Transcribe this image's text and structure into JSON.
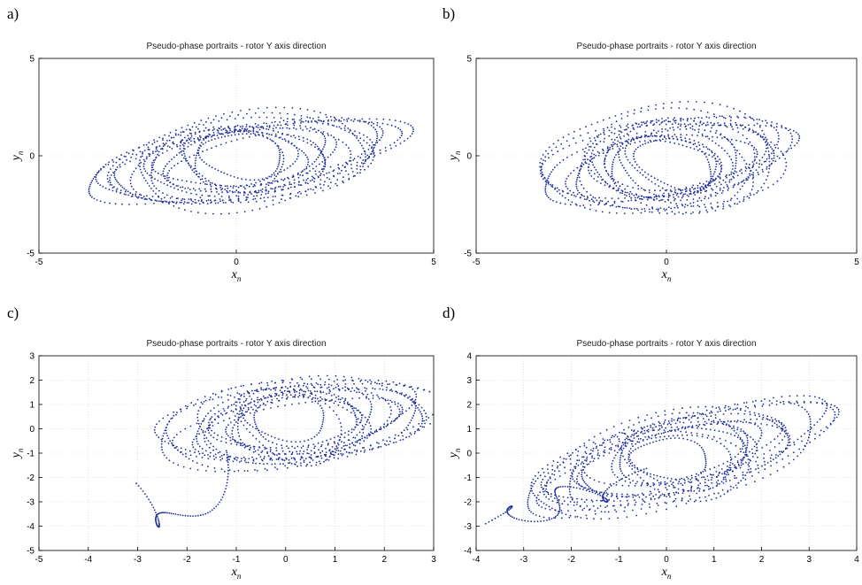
{
  "figure": {
    "panels": [
      {
        "label": "a)",
        "chart_data": {
          "type": "scatter",
          "title": "Pseudo-phase portraits - rotor Y axis direction",
          "xlabel": "x",
          "xlabel_sub": "n",
          "ylabel": "y",
          "ylabel_sub": "n",
          "xlim": [
            -5,
            5
          ],
          "ylim": [
            -5,
            5
          ],
          "xticks": [
            "-5",
            "0",
            "5"
          ],
          "yticks": [
            "-5",
            "0",
            "5"
          ],
          "grid": true,
          "series": [
            {
              "color": "#1f2f9a",
              "shape": "tilted elliptical orbits, semi-major ~3.2-4.2",
              "a_range": [
                1.0,
                4.2
              ],
              "b_range": [
                0.7,
                2.3
              ],
              "tilt_deg": 22,
              "cx": 0.2,
              "cy": -0.3
            }
          ]
        }
      },
      {
        "label": "b)",
        "chart_data": {
          "type": "scatter",
          "title": "Pseudo-phase portraits - rotor Y axis direction",
          "xlabel": "x",
          "xlabel_sub": "n",
          "ylabel": "y",
          "ylabel_sub": "n",
          "xlim": [
            -5,
            5
          ],
          "ylim": [
            -5,
            5
          ],
          "xticks": [
            "-5",
            "0",
            "5"
          ],
          "yticks": [
            "-5",
            "0",
            "5"
          ],
          "grid": true,
          "series": [
            {
              "color": "#1f2f9a",
              "shape": "tilted elliptical orbits",
              "a_range": [
                0.9,
                3.6
              ],
              "b_range": [
                0.8,
                2.8
              ],
              "tilt_deg": 25,
              "cx": 0.1,
              "cy": -0.4
            }
          ]
        }
      },
      {
        "label": "c)",
        "chart_data": {
          "type": "scatter",
          "title": "Pseudo-phase portraits - rotor Y axis direction",
          "xlabel": "x",
          "xlabel_sub": "n",
          "ylabel": "y",
          "ylabel_sub": "n",
          "xlim": [
            -5,
            3
          ],
          "ylim": [
            -5,
            3
          ],
          "xticks": [
            "-5",
            "-4",
            "-3",
            "-2",
            "-1",
            "0",
            "1",
            "2",
            "3"
          ],
          "yticks": [
            "-5",
            "-4",
            "-3",
            "-2",
            "-1",
            "0",
            "1",
            "2",
            "3"
          ],
          "grid": true,
          "series": [
            {
              "color": "#1f2f9a",
              "shape": "tilted elliptical orbits with tail to lower-left",
              "a_range": [
                0.8,
                3.0
              ],
              "b_range": [
                0.6,
                1.8
              ],
              "tilt_deg": 20,
              "cx": 0.3,
              "cy": 0.2
            }
          ]
        }
      },
      {
        "label": "d)",
        "chart_data": {
          "type": "scatter",
          "title": "Pseudo-phase portraits - rotor Y axis direction",
          "xlabel": "x",
          "xlabel_sub": "n",
          "ylabel": "y",
          "ylabel_sub": "n",
          "xlim": [
            -4,
            4
          ],
          "ylim": [
            -4,
            4
          ],
          "xticks": [
            "-4",
            "-3",
            "-2",
            "-1",
            "0",
            "1",
            "2",
            "3",
            "4"
          ],
          "yticks": [
            "-4",
            "-3",
            "-2",
            "-1",
            "0",
            "1",
            "2",
            "3",
            "4"
          ],
          "grid": true,
          "series": [
            {
              "color": "#1f2f9a",
              "shape": "tilted elliptical orbits, strongly tilted",
              "a_range": [
                0.8,
                3.8
              ],
              "b_range": [
                0.5,
                1.6
              ],
              "tilt_deg": 33,
              "cx": 0.2,
              "cy": -0.2
            }
          ]
        }
      }
    ]
  }
}
